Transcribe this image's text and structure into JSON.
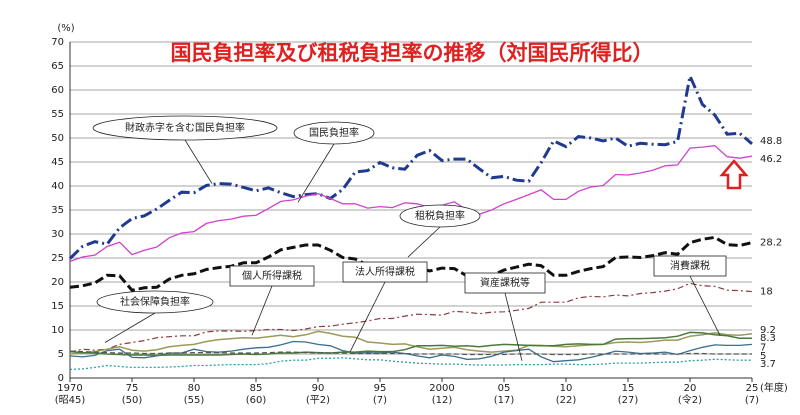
{
  "chart_data": {
    "type": "line",
    "title": "国民負担率及び租税負担率の推移（対国民所得比）",
    "y_unit_label": "(%)",
    "x_unit_label": "(年度)",
    "x": [
      1970,
      1971,
      1972,
      1973,
      1974,
      1975,
      1976,
      1977,
      1978,
      1979,
      1980,
      1981,
      1982,
      1983,
      1984,
      1985,
      1986,
      1987,
      1988,
      1989,
      1990,
      1991,
      1992,
      1993,
      1994,
      1995,
      1996,
      1997,
      1998,
      1999,
      2000,
      2001,
      2002,
      2003,
      2004,
      2005,
      2006,
      2007,
      2008,
      2009,
      2010,
      2011,
      2012,
      2013,
      2014,
      2015,
      2016,
      2017,
      2018,
      2019,
      2020,
      2021,
      2022,
      2023,
      2024,
      2025
    ],
    "xlim": [
      1970,
      2025
    ],
    "xticks": [
      1970,
      {
        "value": 1975,
        "label": "75"
      },
      {
        "value": 1980,
        "label": "80"
      },
      {
        "value": 1985,
        "label": "85"
      },
      {
        "value": 1990,
        "label": "90"
      },
      {
        "value": 1995,
        "label": "95"
      },
      2000,
      {
        "value": 2005,
        "label": "05"
      },
      {
        "value": 2010,
        "label": "10"
      },
      {
        "value": 2015,
        "label": "15"
      },
      {
        "value": 2020,
        "label": "20"
      },
      {
        "value": 2025,
        "label": "25"
      }
    ],
    "xtick_sublabels": [
      "(昭45)",
      "(50)",
      "(55)",
      "(60)",
      "(平2)",
      "(7)",
      "(12)",
      "(17)",
      "(22)",
      "(27)",
      "(令2)",
      "(7)"
    ],
    "ylim": [
      0,
      70
    ],
    "yticks": [
      0,
      5,
      10,
      15,
      20,
      25,
      30,
      35,
      40,
      45,
      50,
      55,
      60,
      65,
      70
    ],
    "grid": true,
    "series": [
      {
        "name": "財政赤字を含む国民負担率",
        "color": "#1f3a8f",
        "values": [
          24.9,
          27.4,
          28.4,
          27.9,
          31.3,
          33.2,
          33.8,
          35.2,
          37.0,
          38.7,
          38.6,
          40.1,
          40.5,
          40.4,
          39.7,
          39.0,
          39.6,
          38.6,
          37.8,
          38.2,
          38.4,
          37.4,
          39.3,
          42.9,
          43.2,
          44.9,
          43.8,
          43.5,
          46.4,
          47.4,
          45.3,
          45.6,
          45.6,
          43.6,
          41.7,
          42.0,
          41.2,
          41.0,
          44.9,
          49.4,
          48.2,
          50.3,
          50.0,
          49.4,
          50.0,
          48.3,
          48.9,
          48.7,
          48.6,
          49.3,
          62.9,
          57.0,
          54.8,
          50.8,
          51.0,
          48.8
        ]
      },
      {
        "name": "国民負担率",
        "color": "#d042d0",
        "values": [
          24.3,
          25.2,
          25.6,
          27.4,
          28.3,
          25.7,
          26.6,
          27.3,
          29.2,
          30.2,
          30.5,
          32.2,
          32.8,
          33.1,
          33.7,
          33.9,
          35.3,
          36.8,
          37.1,
          37.9,
          38.4,
          37.4,
          36.3,
          36.3,
          35.4,
          35.7,
          35.5,
          36.5,
          36.3,
          35.5,
          36.0,
          36.7,
          35.0,
          34.1,
          35.0,
          36.3,
          37.2,
          38.2,
          39.2,
          37.2,
          37.2,
          38.9,
          39.8,
          40.1,
          42.4,
          42.3,
          42.7,
          43.3,
          44.2,
          44.4,
          47.9,
          48.1,
          48.4,
          46.1,
          45.8,
          46.2
        ]
      },
      {
        "name": "租税負担率",
        "color": "#111111",
        "values": [
          18.9,
          19.2,
          19.8,
          21.4,
          21.3,
          18.3,
          18.8,
          18.9,
          20.6,
          21.4,
          21.7,
          22.6,
          23.0,
          23.3,
          24.0,
          24.0,
          25.2,
          26.7,
          27.2,
          27.7,
          27.7,
          26.6,
          25.1,
          24.8,
          23.5,
          23.3,
          23.1,
          23.6,
          23.0,
          22.3,
          22.9,
          22.8,
          21.3,
          20.7,
          21.3,
          22.5,
          23.1,
          23.7,
          23.4,
          21.4,
          21.4,
          22.2,
          22.8,
          23.2,
          25.1,
          25.2,
          25.1,
          25.5,
          26.1,
          25.8,
          28.2,
          28.9,
          29.3,
          27.8,
          27.6,
          28.2
        ]
      },
      {
        "name": "社会保障負担率",
        "color": "#8b3a3a",
        "values": [
          5.4,
          6.0,
          5.8,
          6.0,
          7.0,
          7.4,
          7.8,
          8.4,
          8.6,
          8.8,
          8.8,
          9.6,
          9.8,
          9.8,
          9.7,
          9.9,
          10.1,
          10.1,
          9.9,
          10.2,
          10.7,
          10.8,
          11.2,
          11.5,
          11.9,
          12.4,
          12.4,
          12.9,
          13.3,
          13.2,
          13.1,
          13.9,
          13.7,
          13.4,
          13.7,
          13.8,
          14.1,
          14.5,
          15.8,
          15.8,
          15.8,
          16.7,
          17.0,
          16.9,
          17.3,
          17.1,
          17.6,
          17.8,
          18.1,
          18.6,
          19.7,
          19.2,
          19.1,
          18.3,
          18.2,
          18.0
        ]
      },
      {
        "name": "個人所得課税",
        "color": "#9a9a5a",
        "values": [
          5.0,
          5.2,
          5.5,
          6.0,
          6.5,
          5.8,
          5.6,
          5.9,
          6.5,
          6.8,
          7.0,
          7.6,
          8.0,
          8.2,
          8.4,
          8.3,
          8.6,
          8.9,
          8.6,
          9.0,
          9.7,
          9.3,
          8.7,
          8.5,
          7.5,
          7.3,
          7.0,
          7.1,
          6.5,
          6.0,
          6.2,
          6.4,
          5.9,
          5.6,
          5.4,
          5.6,
          5.8,
          6.8,
          6.8,
          6.6,
          6.5,
          6.7,
          6.9,
          7.0,
          7.4,
          7.5,
          7.4,
          7.6,
          7.9,
          7.9,
          8.7,
          9.0,
          9.4,
          9.0,
          8.9,
          9.2
        ]
      },
      {
        "name": "法人所得課税",
        "color": "#3a6f8f",
        "values": [
          4.6,
          4.4,
          4.7,
          5.7,
          6.0,
          4.3,
          4.2,
          4.6,
          5.2,
          5.2,
          6.0,
          5.5,
          5.4,
          5.6,
          6.0,
          6.3,
          6.4,
          6.9,
          7.6,
          7.5,
          7.0,
          6.7,
          5.7,
          5.2,
          5.3,
          5.2,
          5.4,
          5.1,
          4.6,
          4.2,
          4.8,
          4.5,
          3.9,
          4.0,
          4.5,
          5.4,
          5.7,
          6.0,
          4.4,
          3.4,
          3.6,
          3.8,
          4.3,
          4.9,
          5.6,
          5.4,
          5.1,
          5.2,
          5.4,
          4.9,
          5.7,
          6.4,
          6.9,
          6.8,
          6.8,
          7.0
        ]
      },
      {
        "name": "資産課税等",
        "color": "#2aa0a0",
        "values": [
          1.8,
          1.9,
          2.2,
          2.6,
          2.4,
          2.2,
          2.2,
          2.2,
          2.3,
          2.4,
          2.6,
          2.6,
          2.7,
          2.8,
          2.8,
          2.8,
          3.0,
          3.5,
          3.7,
          3.7,
          4.1,
          4.1,
          4.2,
          4.0,
          3.8,
          3.8,
          3.5,
          3.3,
          3.1,
          3.0,
          2.9,
          2.9,
          2.8,
          2.7,
          2.7,
          2.7,
          2.8,
          2.8,
          2.8,
          2.9,
          2.9,
          2.8,
          2.8,
          2.9,
          3.1,
          3.1,
          3.1,
          3.2,
          3.3,
          3.3,
          3.6,
          3.7,
          3.9,
          3.8,
          3.7,
          3.7
        ]
      },
      {
        "name": "消費課税",
        "color": "#4a7a3a",
        "values": [
          5.5,
          5.3,
          5.2,
          5.0,
          4.9,
          4.8,
          4.8,
          4.7,
          4.8,
          4.8,
          4.8,
          4.8,
          4.8,
          4.9,
          5.0,
          4.9,
          5.0,
          5.2,
          5.2,
          5.4,
          5.3,
          5.2,
          5.4,
          5.4,
          5.6,
          5.5,
          5.5,
          5.9,
          6.7,
          6.7,
          6.8,
          6.6,
          6.7,
          6.5,
          6.8,
          7.0,
          6.9,
          6.8,
          6.7,
          6.7,
          7.0,
          7.1,
          7.0,
          7.0,
          8.1,
          8.2,
          8.2,
          8.3,
          8.4,
          8.7,
          9.5,
          9.4,
          9.0,
          8.8,
          8.3,
          8.3
        ]
      },
      {
        "color": "#555555",
        "values": [
          5.6,
          5.5,
          5.4,
          5.3,
          5.2,
          5.2,
          5.1,
          5.1,
          5.2,
          5.2,
          5.3,
          5.3,
          5.3,
          5.2,
          5.2,
          5.2,
          5.3,
          5.4,
          5.4,
          5.3,
          5.2,
          5.2,
          5.2,
          5.1,
          5.1,
          5.1,
          5.1,
          5.1,
          5.0,
          5.0,
          5.0,
          5.0,
          4.9,
          4.9,
          4.9,
          4.9,
          5.0,
          5.0,
          5.0,
          4.9,
          4.9,
          4.9,
          5.0,
          5.0,
          5.0,
          5.0,
          5.0,
          5.0,
          5.0,
          5.0,
          5.1,
          5.1,
          5.0,
          5.0,
          5.0,
          5.0
        ]
      }
    ]
  }
}
